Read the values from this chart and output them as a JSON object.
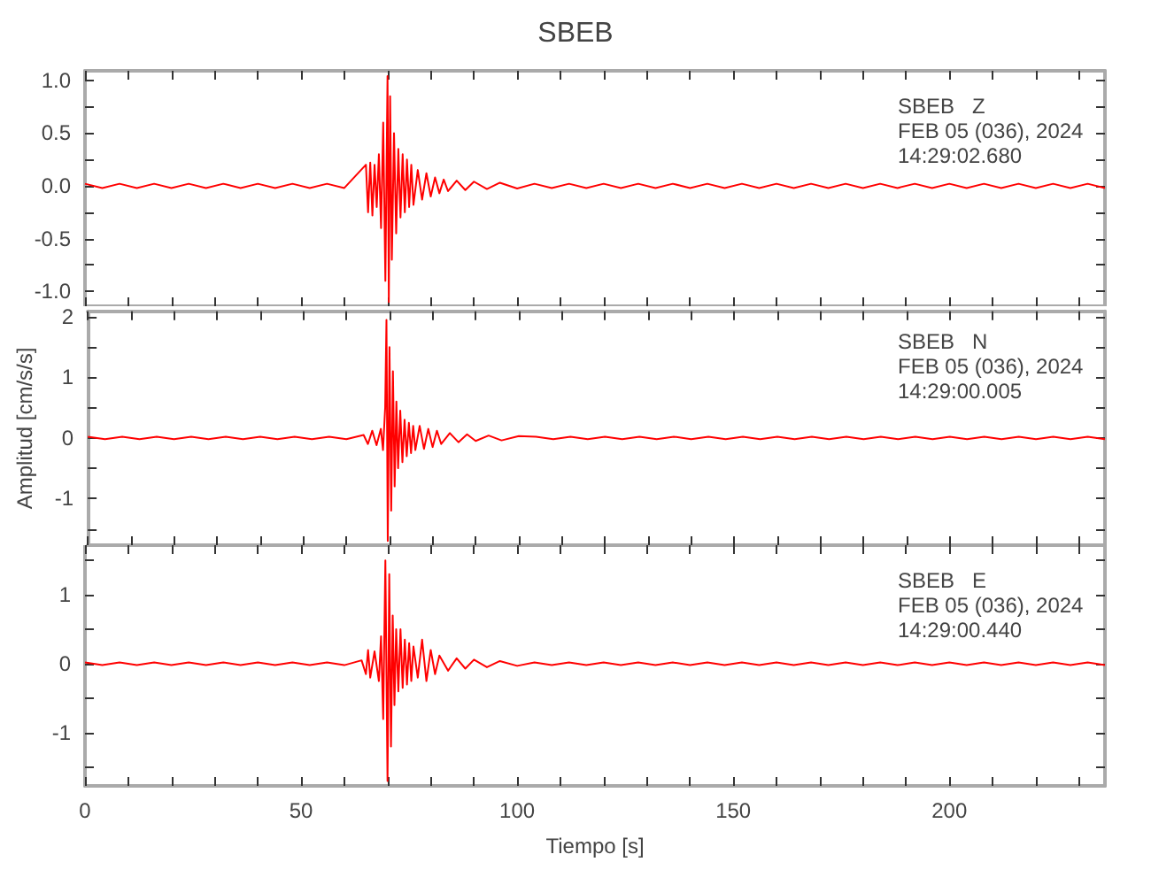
{
  "chart_data": [
    {
      "type": "line",
      "title": "SBEB",
      "annotations": [
        "SBEB   Z",
        "FEB 05 (036), 2024",
        "14:29:02.680"
      ],
      "tick_labels": "y",
      "xlim": [
        0,
        236
      ],
      "ylim": [
        -1.14,
        1.09
      ],
      "xticks": [
        {
          "value": 0,
          "label": null
        },
        {
          "value": 10,
          "label": null
        },
        {
          "value": 20,
          "label": null
        },
        {
          "value": 30,
          "label": null
        },
        {
          "value": 40,
          "label": null
        },
        {
          "value": 50,
          "label": null
        },
        {
          "value": 60,
          "label": null
        },
        {
          "value": 70,
          "label": null
        },
        {
          "value": 80,
          "label": null
        },
        {
          "value": 90,
          "label": null
        },
        {
          "value": 100,
          "label": null
        },
        {
          "value": 110,
          "label": null
        },
        {
          "value": 120,
          "label": null
        },
        {
          "value": 130,
          "label": null
        },
        {
          "value": 140,
          "label": null
        },
        {
          "value": 150,
          "label": null
        },
        {
          "value": 160,
          "label": null
        },
        {
          "value": 170,
          "label": null
        },
        {
          "value": 180,
          "label": null
        },
        {
          "value": 190,
          "label": null
        },
        {
          "value": 200,
          "label": null
        },
        {
          "value": 210,
          "label": null
        },
        {
          "value": 220,
          "label": null
        },
        {
          "value": 230,
          "label": null
        }
      ],
      "yticks": [
        {
          "value": -1,
          "label": "-1.0"
        },
        {
          "value": -0.75,
          "label": null
        },
        {
          "value": -0.5,
          "label": "-0.5"
        },
        {
          "value": -0.25,
          "label": null
        },
        {
          "value": 0,
          "label": "0.0"
        },
        {
          "value": 0.25,
          "label": null
        },
        {
          "value": 0.5,
          "label": "0.5"
        },
        {
          "value": 0.75,
          "label": null
        },
        {
          "value": 1,
          "label": "1.0"
        }
      ],
      "series": [
        {
          "color": "#ff0000",
          "x": [
            0,
            4,
            8,
            12,
            16,
            20,
            24,
            28,
            32,
            36,
            40,
            44,
            48,
            52,
            56,
            60,
            65,
            65.5,
            66,
            66.5,
            67,
            67.5,
            68,
            68.5,
            69,
            69.5,
            70,
            70.3,
            70.6,
            71,
            71.5,
            72,
            72.5,
            73,
            73.5,
            74,
            74.5,
            75,
            75.5,
            76,
            77,
            78,
            79,
            80,
            81,
            82,
            83,
            84,
            86,
            88,
            90,
            93,
            96,
            100,
            104,
            108,
            112,
            116,
            120,
            124,
            128,
            132,
            136,
            140,
            144,
            148,
            152,
            156,
            160,
            164,
            168,
            172,
            176,
            180,
            184,
            188,
            192,
            196,
            200,
            204,
            208,
            212,
            216,
            220,
            224,
            228,
            232,
            236
          ],
          "values": [
            0.02,
            -0.02,
            0.02,
            -0.02,
            0.02,
            -0.02,
            0.02,
            -0.02,
            0.02,
            -0.02,
            0.02,
            -0.02,
            0.02,
            -0.02,
            0.02,
            -0.02,
            0.2,
            -0.25,
            0.22,
            -0.28,
            0.2,
            -0.2,
            0.3,
            -0.4,
            0.6,
            -0.9,
            1.04,
            -1.1,
            0.85,
            -0.7,
            0.5,
            -0.45,
            0.35,
            -0.3,
            0.3,
            -0.25,
            0.25,
            -0.2,
            0.2,
            -0.18,
            0.15,
            -0.13,
            0.12,
            -0.1,
            0.08,
            -0.07,
            0.06,
            -0.05,
            0.05,
            -0.04,
            0.04,
            -0.03,
            0.03,
            -0.025,
            0.02,
            -0.02,
            0.02,
            -0.02,
            0.02,
            -0.02,
            0.02,
            -0.02,
            0.02,
            -0.02,
            0.02,
            -0.02,
            0.02,
            -0.02,
            0.02,
            -0.02,
            0.02,
            -0.02,
            0.02,
            -0.02,
            0.02,
            -0.02,
            0.02,
            -0.02,
            0.02,
            -0.02,
            0.02,
            -0.02,
            0.02,
            -0.02,
            0.02,
            -0.02,
            0.02,
            -0.02
          ]
        }
      ]
    },
    {
      "type": "line",
      "ylabel": "Amplitud [cm/s/s]",
      "annotations": [
        "SBEB   N",
        "FEB 05 (036), 2024",
        "14:29:00.005"
      ],
      "tick_labels": "y",
      "xlim": [
        0,
        236
      ],
      "ylim": [
        -1.77,
        2.09
      ],
      "xticks": [
        {
          "value": 0,
          "label": null
        },
        {
          "value": 10,
          "label": null
        },
        {
          "value": 20,
          "label": null
        },
        {
          "value": 30,
          "label": null
        },
        {
          "value": 40,
          "label": null
        },
        {
          "value": 50,
          "label": null
        },
        {
          "value": 60,
          "label": null
        },
        {
          "value": 70,
          "label": null
        },
        {
          "value": 80,
          "label": null
        },
        {
          "value": 90,
          "label": null
        },
        {
          "value": 100,
          "label": null
        },
        {
          "value": 110,
          "label": null
        },
        {
          "value": 120,
          "label": null
        },
        {
          "value": 130,
          "label": null
        },
        {
          "value": 140,
          "label": null
        },
        {
          "value": 150,
          "label": null
        },
        {
          "value": 160,
          "label": null
        },
        {
          "value": 170,
          "label": null
        },
        {
          "value": 180,
          "label": null
        },
        {
          "value": 190,
          "label": null
        },
        {
          "value": 200,
          "label": null
        },
        {
          "value": 210,
          "label": null
        },
        {
          "value": 220,
          "label": null
        },
        {
          "value": 230,
          "label": null
        }
      ],
      "yticks": [
        {
          "value": -1.5,
          "label": null
        },
        -1,
        {
          "value": -0.5,
          "label": null
        },
        0,
        {
          "value": 0.5,
          "label": null
        },
        1,
        {
          "value": 1.5,
          "label": null
        },
        2
      ],
      "series": [
        {
          "color": "#ff0000",
          "x": [
            0,
            4,
            8,
            12,
            16,
            20,
            24,
            28,
            32,
            36,
            40,
            44,
            48,
            52,
            56,
            60,
            64,
            65,
            66,
            67,
            68,
            68.5,
            69,
            69.3,
            69.6,
            70,
            70.4,
            70.8,
            71.2,
            71.6,
            72,
            72.5,
            73,
            73.5,
            74,
            74.5,
            75,
            75.5,
            76,
            77,
            78,
            79,
            80,
            81,
            82,
            84,
            86,
            88,
            90,
            93,
            96,
            100,
            104,
            108,
            112,
            116,
            120,
            124,
            128,
            132,
            136,
            140,
            144,
            148,
            152,
            156,
            160,
            164,
            168,
            172,
            176,
            180,
            184,
            188,
            192,
            196,
            200,
            204,
            208,
            212,
            216,
            220,
            224,
            228,
            232,
            236
          ],
          "values": [
            0.02,
            -0.02,
            0.02,
            -0.02,
            0.02,
            -0.02,
            0.02,
            -0.02,
            0.02,
            -0.02,
            0.02,
            -0.02,
            0.02,
            -0.02,
            0.02,
            -0.02,
            0.05,
            -0.1,
            0.12,
            -0.12,
            0.15,
            -0.2,
            0.5,
            1.95,
            -1.7,
            1.5,
            -1.2,
            1.1,
            -0.8,
            0.6,
            -0.5,
            0.45,
            -0.4,
            0.3,
            -0.3,
            0.25,
            -0.25,
            0.2,
            -0.2,
            0.2,
            -0.18,
            0.15,
            -0.15,
            0.12,
            -0.1,
            0.08,
            -0.07,
            0.06,
            -0.05,
            0.04,
            -0.04,
            0.03,
            0.02,
            -0.02,
            0.02,
            -0.02,
            0.02,
            -0.02,
            0.02,
            -0.02,
            0.02,
            -0.02,
            0.02,
            -0.02,
            0.02,
            -0.02,
            0.02,
            -0.02,
            0.02,
            -0.02,
            0.02,
            -0.02,
            0.02,
            -0.02,
            0.02,
            -0.02,
            0.02,
            -0.02,
            0.02,
            -0.02,
            0.02,
            -0.02,
            0.02,
            -0.02,
            0.02,
            -0.02
          ]
        }
      ]
    },
    {
      "type": "line",
      "xlabel": "Tiempo [s]",
      "annotations": [
        "SBEB   E",
        "FEB 05 (036), 2024",
        "14:29:00.440"
      ],
      "xlim": [
        0,
        236
      ],
      "ylim": [
        -1.77,
        1.72
      ],
      "xticks": [
        0,
        {
          "value": 10,
          "label": null
        },
        {
          "value": 20,
          "label": null
        },
        {
          "value": 30,
          "label": null
        },
        {
          "value": 40,
          "label": null
        },
        50,
        {
          "value": 60,
          "label": null
        },
        {
          "value": 70,
          "label": null
        },
        {
          "value": 80,
          "label": null
        },
        {
          "value": 90,
          "label": null
        },
        100,
        {
          "value": 110,
          "label": null
        },
        {
          "value": 120,
          "label": null
        },
        {
          "value": 130,
          "label": null
        },
        {
          "value": 140,
          "label": null
        },
        150,
        {
          "value": 160,
          "label": null
        },
        {
          "value": 170,
          "label": null
        },
        {
          "value": 180,
          "label": null
        },
        {
          "value": 190,
          "label": null
        },
        200,
        {
          "value": 210,
          "label": null
        },
        {
          "value": 220,
          "label": null
        },
        {
          "value": 230,
          "label": null
        }
      ],
      "yticks": [
        {
          "value": -1.5,
          "label": null
        },
        -1,
        {
          "value": -0.5,
          "label": null
        },
        0,
        {
          "value": 0.5,
          "label": null
        },
        1,
        {
          "value": 1.5,
          "label": null
        }
      ],
      "series": [
        {
          "color": "#ff0000",
          "x": [
            0,
            4,
            8,
            12,
            16,
            20,
            24,
            28,
            32,
            36,
            40,
            44,
            48,
            52,
            56,
            60,
            64,
            65,
            65.5,
            66,
            67,
            68,
            68.5,
            69,
            69.5,
            70,
            70.4,
            70.8,
            71.2,
            71.6,
            72,
            72.5,
            73,
            73.5,
            74,
            74.5,
            75,
            75.5,
            76,
            77,
            78,
            79,
            80,
            81,
            82,
            84,
            86,
            88,
            90,
            93,
            96,
            100,
            104,
            108,
            112,
            116,
            120,
            124,
            128,
            132,
            136,
            140,
            144,
            148,
            152,
            156,
            160,
            164,
            168,
            172,
            176,
            180,
            184,
            188,
            192,
            196,
            200,
            204,
            208,
            212,
            216,
            220,
            224,
            228,
            232,
            236
          ],
          "values": [
            0.02,
            -0.02,
            0.02,
            -0.02,
            0.02,
            -0.02,
            0.02,
            -0.02,
            0.02,
            -0.02,
            0.02,
            -0.02,
            0.02,
            -0.02,
            0.02,
            -0.02,
            0.05,
            -0.15,
            0.2,
            -0.2,
            0.18,
            -0.25,
            0.4,
            -0.8,
            1.5,
            -1.7,
            1.3,
            -1.2,
            0.7,
            -0.6,
            0.5,
            -0.4,
            0.5,
            -0.35,
            0.35,
            -0.3,
            0.3,
            -0.25,
            0.25,
            -0.2,
            0.35,
            -0.25,
            0.2,
            -0.15,
            0.12,
            -0.1,
            0.08,
            -0.07,
            0.06,
            -0.05,
            0.04,
            -0.03,
            0.02,
            -0.02,
            0.02,
            -0.02,
            0.02,
            -0.02,
            0.02,
            -0.02,
            0.02,
            -0.02,
            0.02,
            -0.02,
            0.02,
            -0.02,
            0.02,
            -0.02,
            0.02,
            -0.02,
            0.02,
            -0.02,
            0.02,
            -0.02,
            0.02,
            -0.02,
            0.02,
            -0.02,
            0.02,
            -0.02,
            0.02,
            -0.02,
            0.02,
            -0.02,
            0.02,
            -0.02
          ]
        }
      ]
    }
  ]
}
